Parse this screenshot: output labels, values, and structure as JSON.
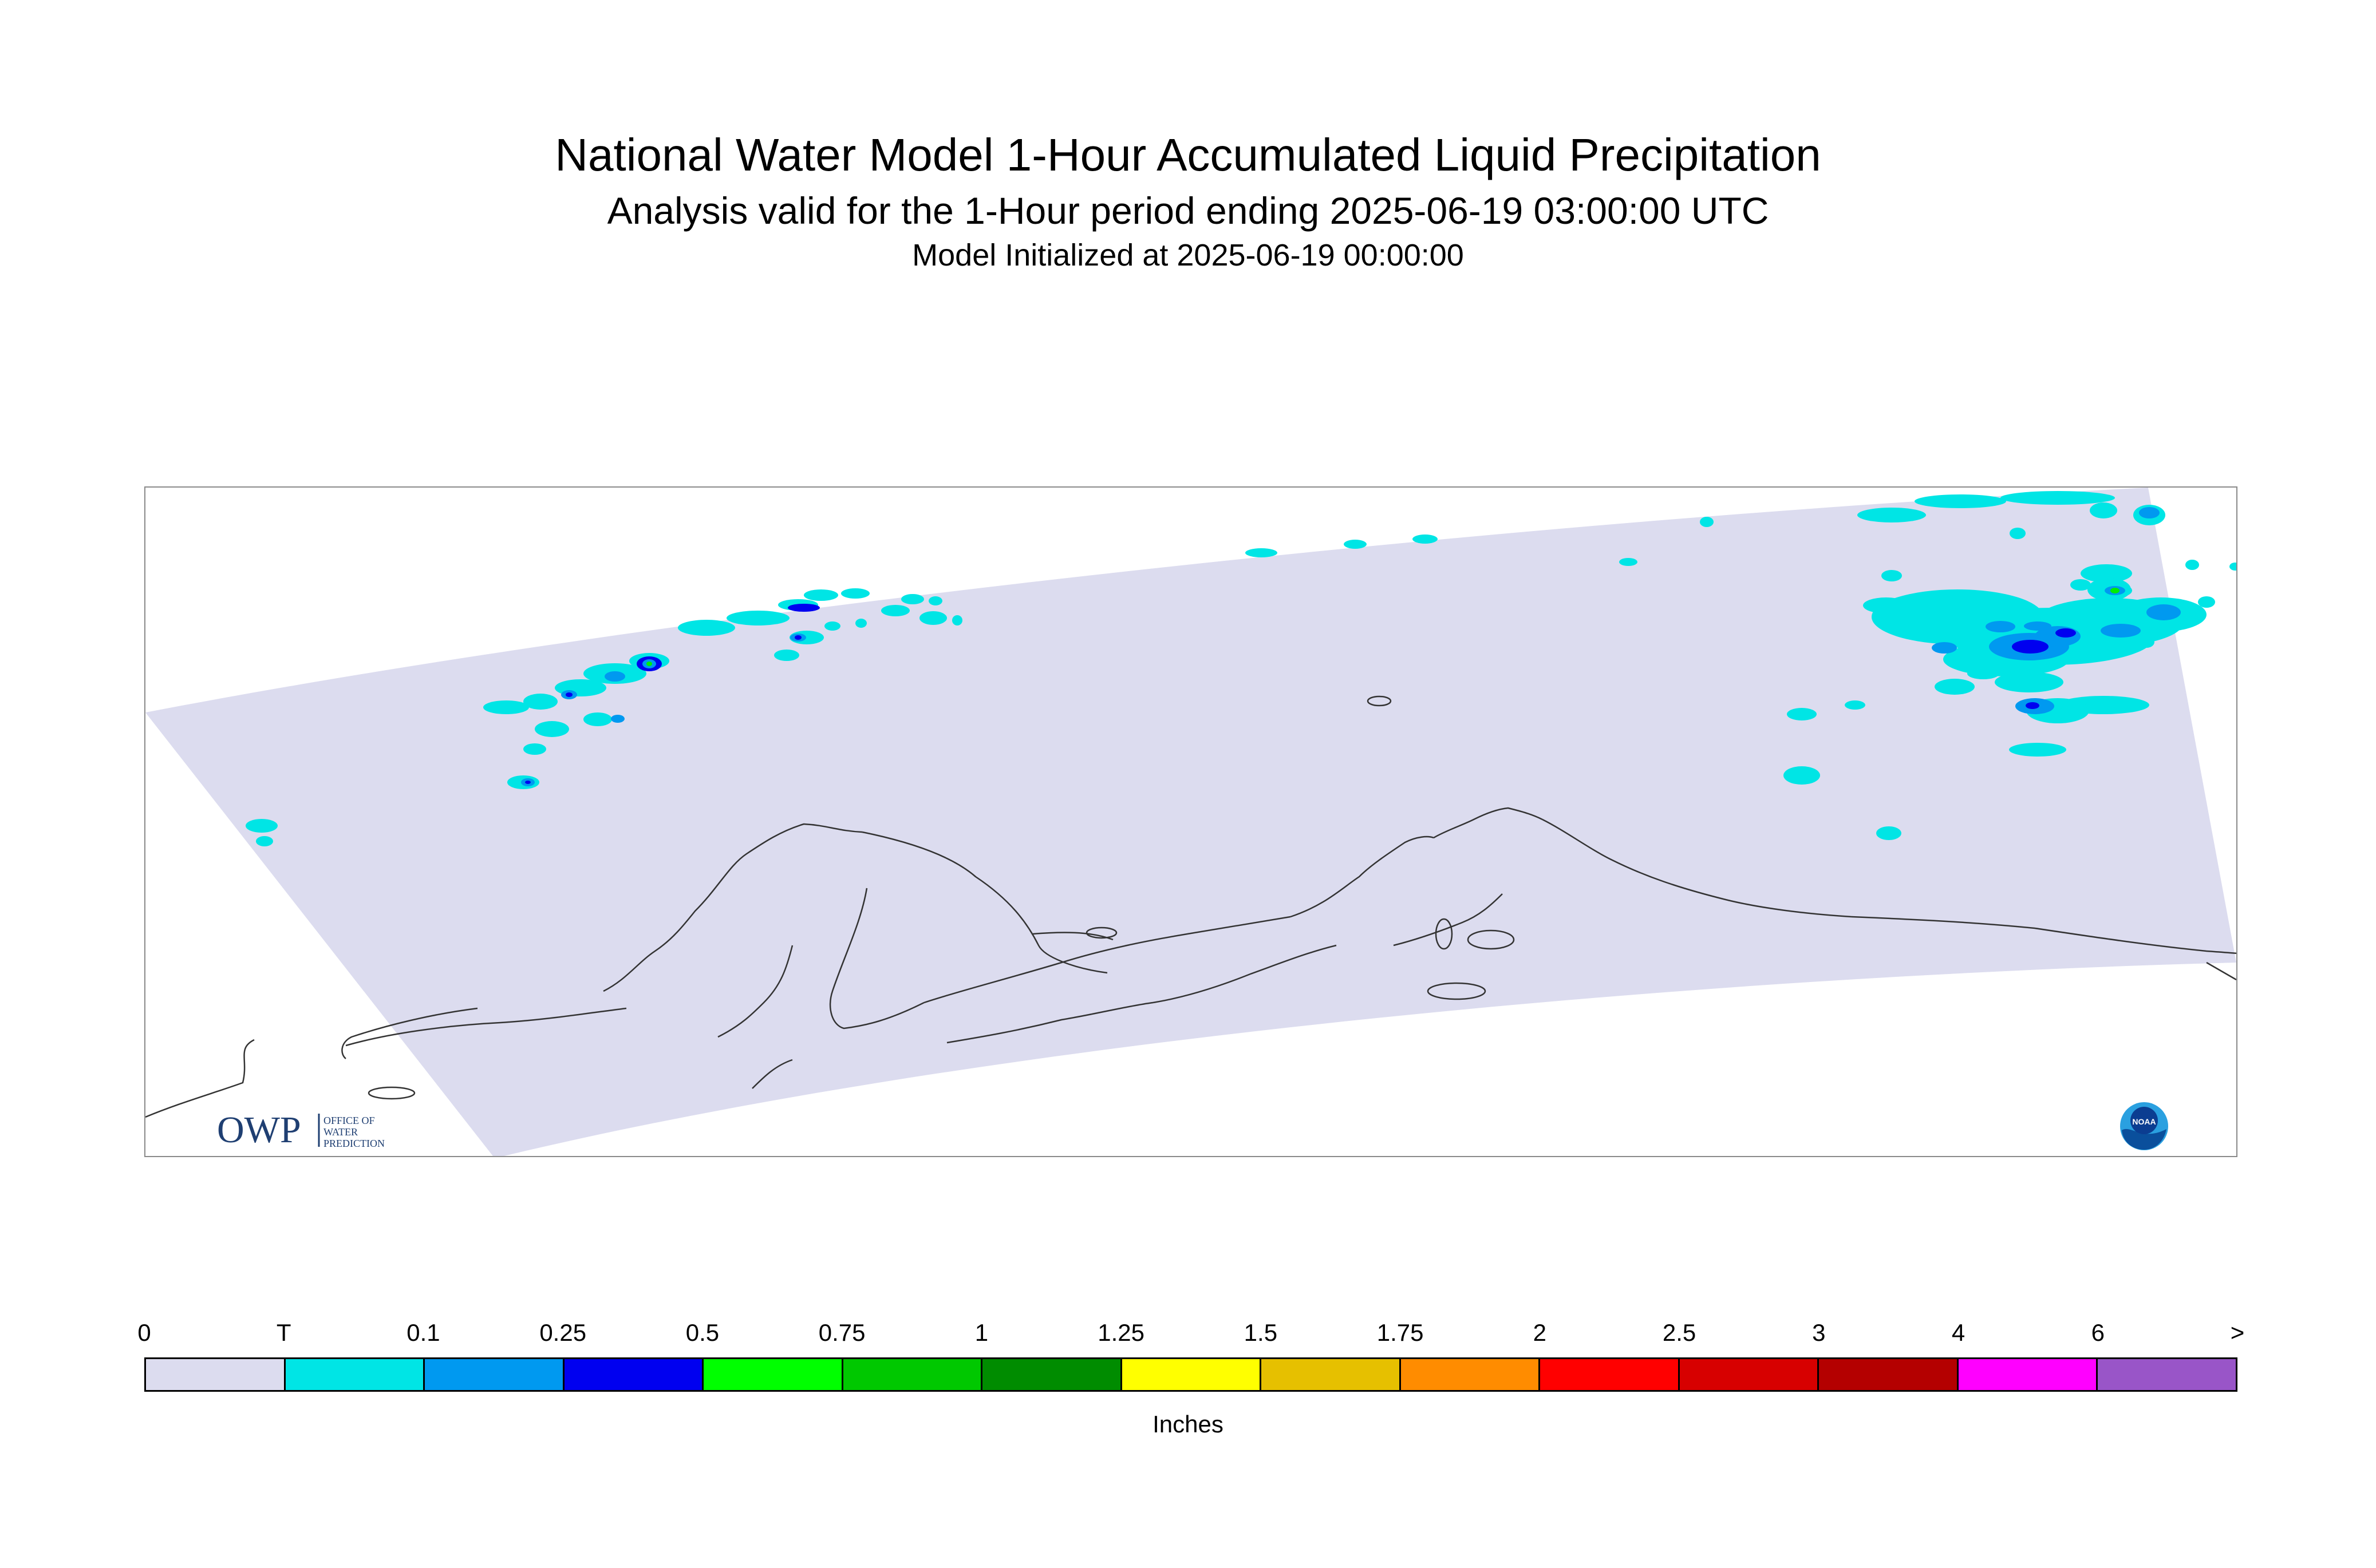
{
  "title": "National Water Model 1-Hour Accumulated Liquid Precipitation",
  "subtitle": "Analysis valid for the 1-Hour period ending 2025-06-19 03:00:00 UTC",
  "init_line": "Model Initialized at 2025-06-19 00:00:00",
  "logos": {
    "owp_letters": "OWP",
    "owp_text": [
      "OFFICE OF",
      "WATER",
      "PREDICTION"
    ],
    "noaa_text": "NOAA"
  },
  "map_colors": {
    "domain_fill": "#dcdcef",
    "coastline": "#333333",
    "trace": "#00e5e5",
    "light_blue": "#0099f0",
    "blue": "#0000f0",
    "green": "#00ee00"
  },
  "colorbar": {
    "tick_labels": [
      "0",
      "T",
      "0.1",
      "0.25",
      "0.5",
      "0.75",
      "1",
      "1.25",
      "1.5",
      "1.75",
      "2",
      "2.5",
      "3",
      "4",
      "6",
      ">"
    ],
    "colors": [
      "#dcdcef",
      "#00e5e5",
      "#0099f0",
      "#0000f0",
      "#00ff00",
      "#00c800",
      "#008c00",
      "#ffff00",
      "#e6c000",
      "#ff8c00",
      "#ff0000",
      "#d70000",
      "#b40000",
      "#ff00ff",
      "#9955c8"
    ],
    "units_label": "Inches"
  }
}
